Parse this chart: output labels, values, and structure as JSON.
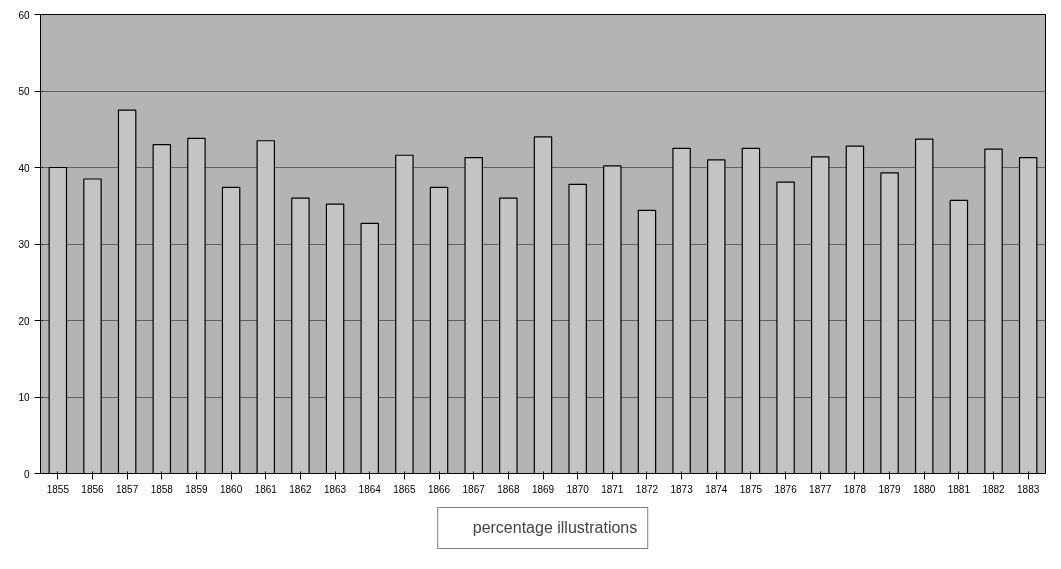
{
  "chart_data": {
    "type": "bar",
    "categories": [
      "1855",
      "1856",
      "1857",
      "1858",
      "1859",
      "1860",
      "1861",
      "1862",
      "1863",
      "1864",
      "1865",
      "1866",
      "1867",
      "1868",
      "1869",
      "1870",
      "1871",
      "1872",
      "1873",
      "1874",
      "1875",
      "1876",
      "1877",
      "1878",
      "1879",
      "1880",
      "1881",
      "1882",
      "1883"
    ],
    "series": [
      {
        "name": "percentage illustrations",
        "color": "#c4c4c4",
        "values": [
          40,
          38.5,
          47.5,
          43,
          43.8,
          37.4,
          43.5,
          36,
          35.2,
          32.7,
          41.6,
          37.4,
          41.3,
          36,
          44,
          37.8,
          40.2,
          34.4,
          42.5,
          41,
          42.5,
          38.1,
          41.4,
          42.8,
          39.3,
          43.7,
          35.7,
          42.4,
          41.3
        ]
      }
    ],
    "ylim": [
      0,
      60
    ],
    "yticks": [
      0,
      10,
      20,
      30,
      40,
      50,
      60
    ],
    "grid": "y",
    "legend": "bottom"
  }
}
